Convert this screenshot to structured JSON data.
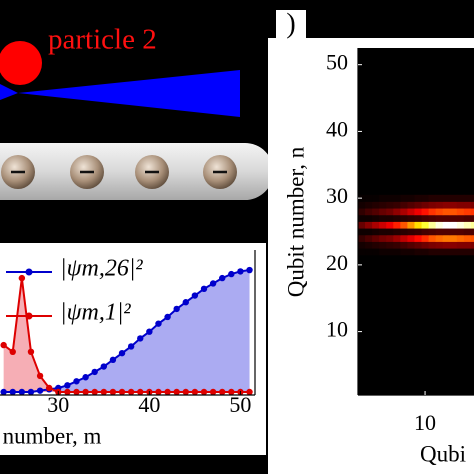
{
  "diagram": {
    "label": "particle 2",
    "panel_label": ")"
  },
  "chart_data": [
    {
      "type": "line",
      "xlabel": "number, m",
      "x": [
        24,
        25,
        26,
        27,
        28,
        29,
        30,
        31,
        32,
        33,
        34,
        35,
        36,
        37,
        38,
        39,
        40,
        41,
        42,
        43,
        44,
        45,
        46,
        47,
        48,
        49,
        50,
        51
      ],
      "xlim": [
        23.6,
        51.6
      ],
      "xticks": [
        30,
        40,
        50
      ],
      "ylim": [
        0,
        1
      ],
      "legend": "upper left",
      "series": [
        {
          "name": "|ψm,26|²",
          "color": "#0000cc",
          "fill": "#9c9cf0",
          "values": [
            0,
            0,
            0,
            0,
            0.01,
            0.02,
            0.03,
            0.05,
            0.08,
            0.11,
            0.15,
            0.19,
            0.24,
            0.29,
            0.34,
            0.4,
            0.45,
            0.51,
            0.56,
            0.62,
            0.67,
            0.72,
            0.77,
            0.81,
            0.85,
            0.88,
            0.9,
            0.91
          ]
        },
        {
          "name": "|ψm,1|²",
          "color": "#dd0000",
          "fill": "#f4a0a8",
          "values": [
            0.35,
            0.3,
            0.85,
            0.3,
            0.12,
            0.03,
            0,
            0,
            0,
            0,
            0,
            0,
            0,
            0,
            0,
            0,
            0,
            0,
            0,
            0,
            0,
            0,
            0,
            0,
            0,
            0,
            0,
            0
          ]
        }
      ]
    },
    {
      "type": "heatmap",
      "ylabel": "Qubit number, n",
      "xlabel": "Qubi",
      "xlim": [
        0.5,
        17.5
      ],
      "ylim": [
        0.5,
        52.5
      ],
      "xticks": [
        10
      ],
      "yticks": [
        10,
        20,
        30,
        40,
        50
      ],
      "colormap": "hot",
      "x": [
        1,
        2,
        3,
        4,
        5,
        6,
        7,
        8,
        9,
        10,
        11,
        12,
        13,
        14,
        15,
        16,
        17
      ],
      "y": [
        22,
        23,
        24,
        25,
        26,
        27,
        28,
        29,
        30
      ],
      "z": [
        [
          0.01,
          0.01,
          0.01,
          0.02,
          0.02,
          0.02,
          0.03,
          0.03,
          0.04,
          0.04,
          0.05,
          0.05,
          0.05,
          0.05,
          0.05,
          0.05,
          0.05
        ],
        [
          0.03,
          0.04,
          0.05,
          0.06,
          0.07,
          0.08,
          0.1,
          0.12,
          0.14,
          0.16,
          0.18,
          0.19,
          0.2,
          0.2,
          0.19,
          0.19,
          0.18
        ],
        [
          0.08,
          0.11,
          0.14,
          0.17,
          0.19,
          0.23,
          0.28,
          0.33,
          0.39,
          0.44,
          0.5,
          0.53,
          0.55,
          0.55,
          0.53,
          0.51,
          0.5
        ],
        [
          0.02,
          0.02,
          0.03,
          0.04,
          0.04,
          0.05,
          0.06,
          0.07,
          0.08,
          0.1,
          0.11,
          0.12,
          0.12,
          0.12,
          0.12,
          0.11,
          0.11
        ],
        [
          0.15,
          0.2,
          0.25,
          0.3,
          0.35,
          0.42,
          0.5,
          0.6,
          0.7,
          0.8,
          0.9,
          0.97,
          1,
          1,
          0.97,
          0.93,
          0.9
        ],
        [
          0.02,
          0.02,
          0.03,
          0.04,
          0.04,
          0.05,
          0.06,
          0.07,
          0.08,
          0.1,
          0.11,
          0.12,
          0.12,
          0.12,
          0.12,
          0.11,
          0.11
        ],
        [
          0.07,
          0.1,
          0.12,
          0.15,
          0.17,
          0.21,
          0.25,
          0.3,
          0.35,
          0.4,
          0.45,
          0.48,
          0.5,
          0.5,
          0.48,
          0.46,
          0.45
        ],
        [
          0.03,
          0.04,
          0.05,
          0.06,
          0.07,
          0.08,
          0.1,
          0.12,
          0.14,
          0.16,
          0.18,
          0.19,
          0.2,
          0.2,
          0.19,
          0.19,
          0.18
        ],
        [
          0.01,
          0.01,
          0.01,
          0.02,
          0.02,
          0.02,
          0.03,
          0.03,
          0.04,
          0.04,
          0.05,
          0.05,
          0.05,
          0.05,
          0.05,
          0.05,
          0.05
        ]
      ]
    }
  ]
}
